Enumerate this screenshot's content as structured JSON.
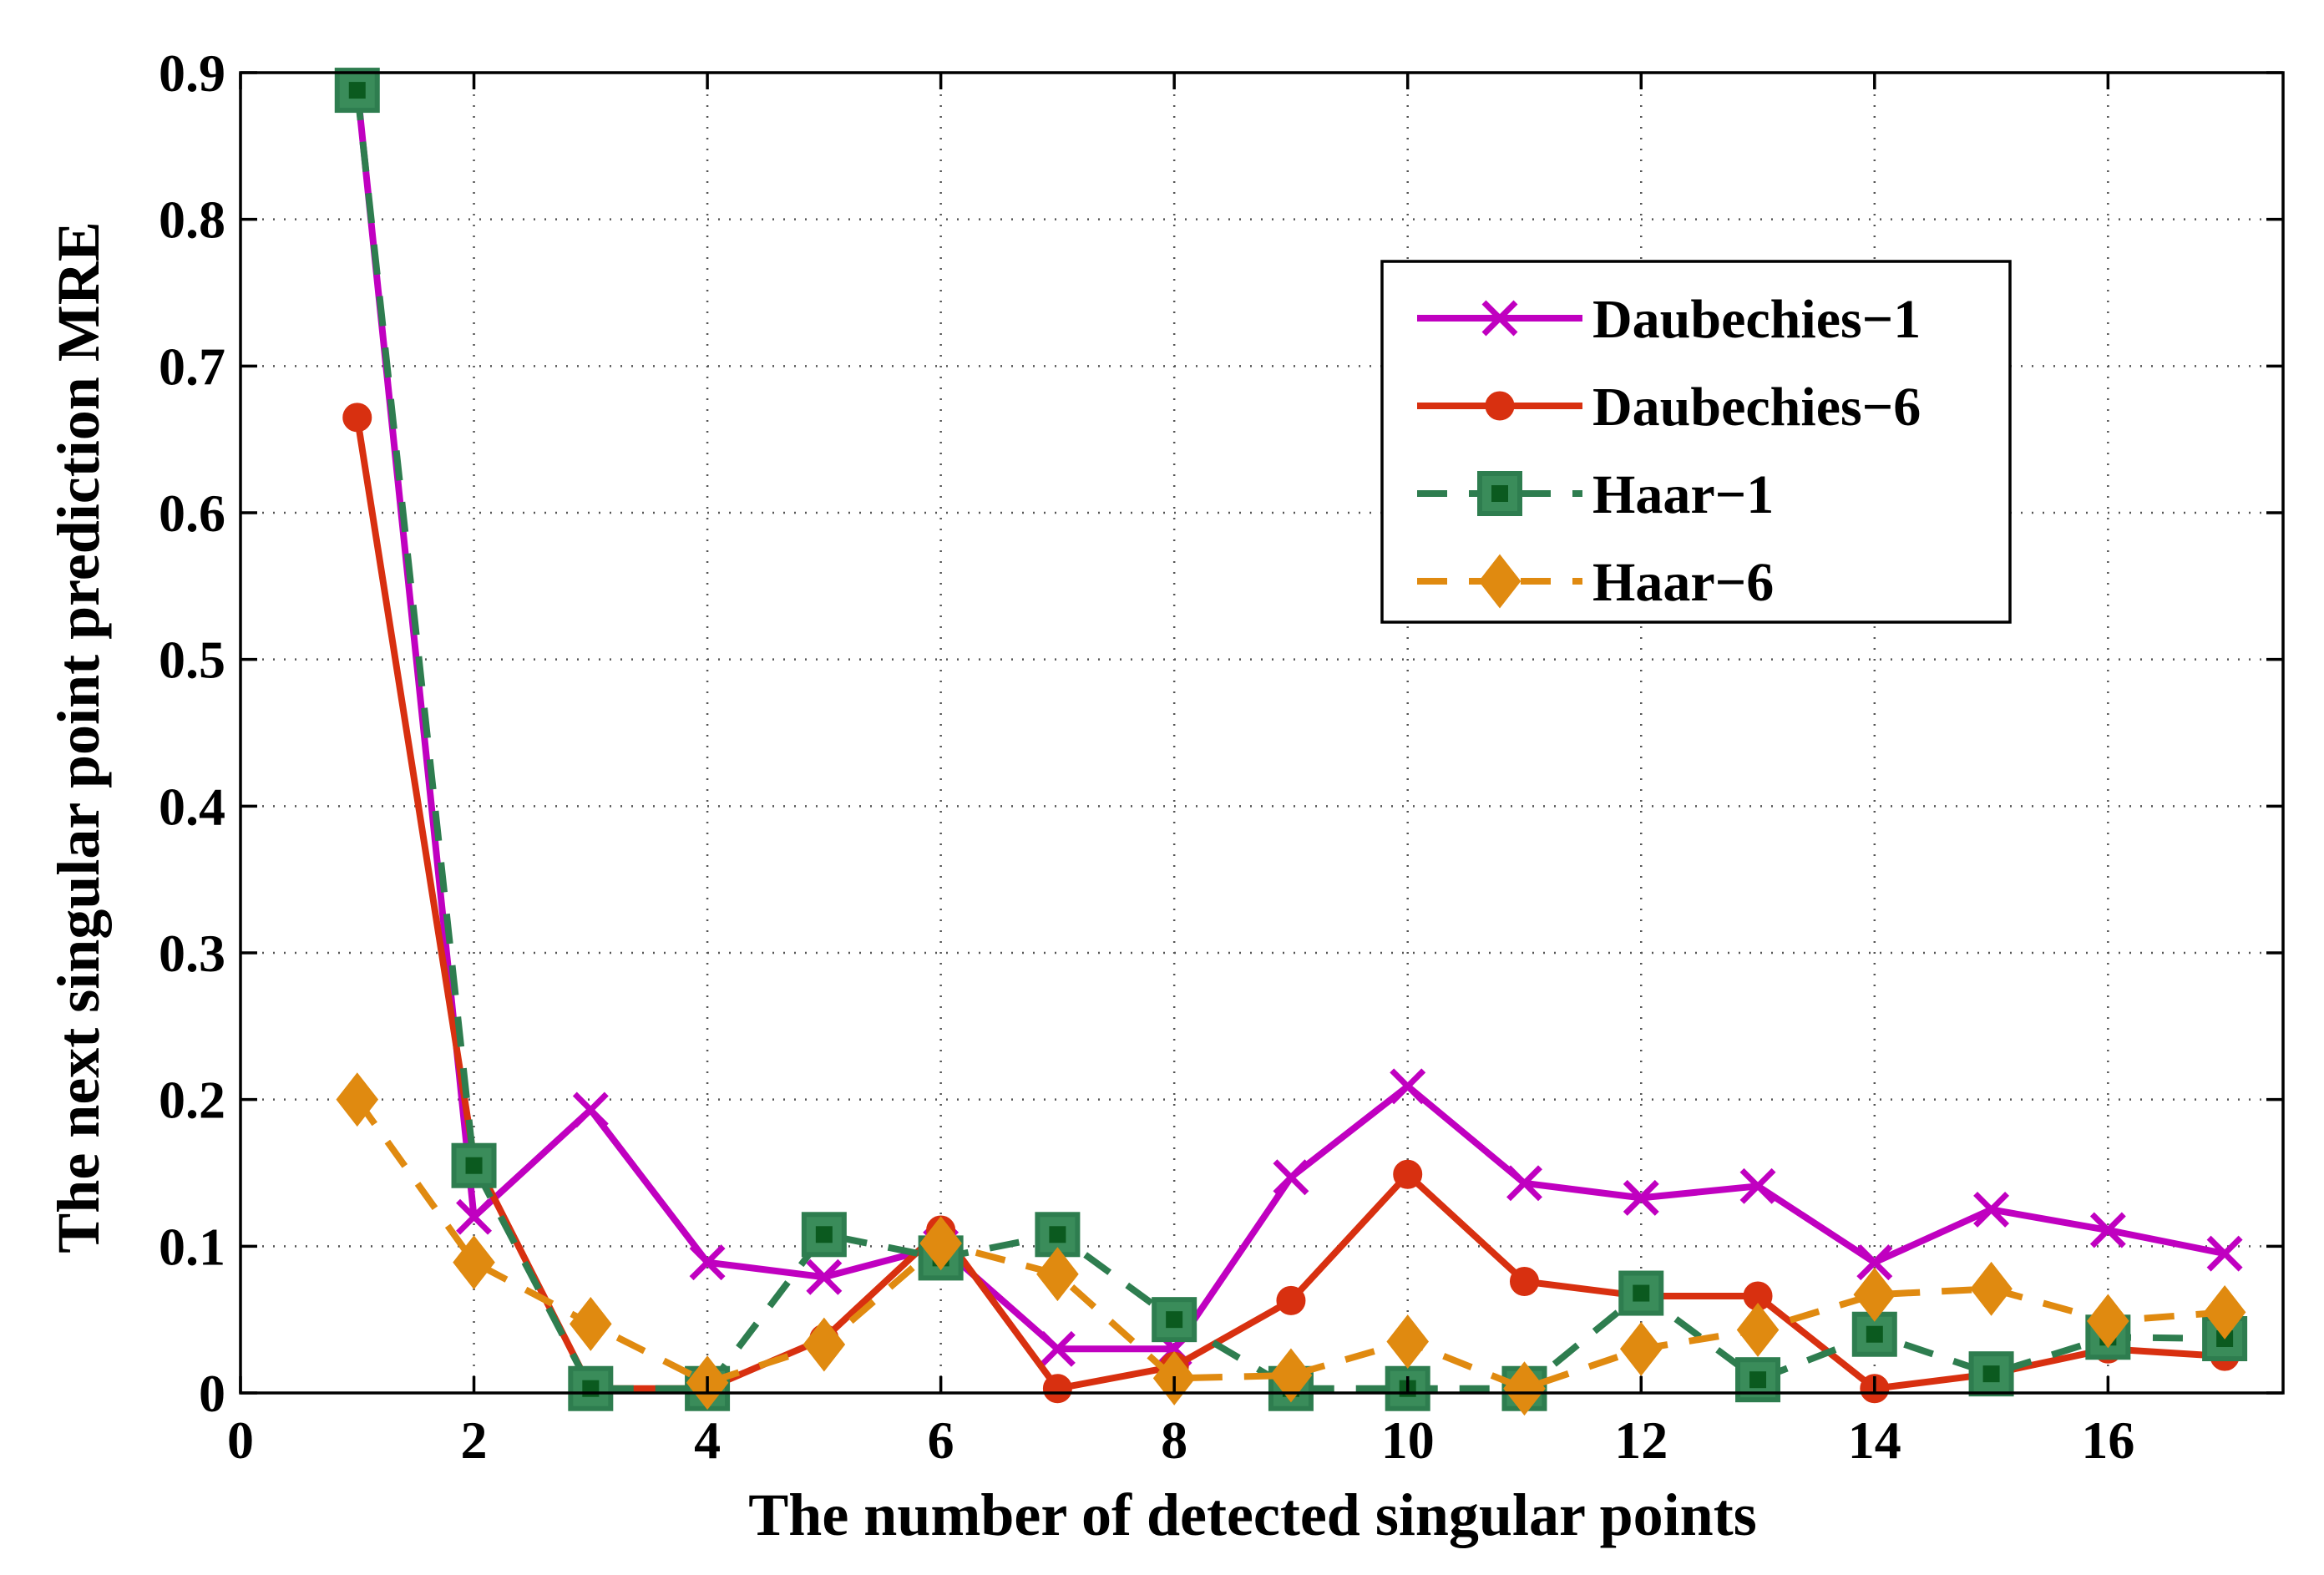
{
  "chart_data": {
    "type": "line",
    "title": "",
    "xlabel": "The number of detected singular points",
    "ylabel": "The next singular point prediction MRE",
    "xlim": [
      0,
      17.5
    ],
    "ylim": [
      0,
      0.9
    ],
    "xticks": [
      0,
      2,
      4,
      6,
      8,
      10,
      12,
      14,
      16
    ],
    "xtick_labels": [
      "0",
      "2",
      "4",
      "6",
      "8",
      "10",
      "12",
      "14",
      "16"
    ],
    "yticks": [
      0,
      0.1,
      0.2,
      0.3,
      0.4,
      0.5,
      0.6,
      0.7,
      0.8,
      0.9
    ],
    "ytick_labels": [
      "0",
      "0.1",
      "0.2",
      "0.3",
      "0.4",
      "0.5",
      "0.6",
      "0.7",
      "0.8",
      "0.9"
    ],
    "grid": true,
    "legend_position": "top-right",
    "x": [
      1,
      2,
      3,
      4,
      5,
      6,
      7,
      8,
      9,
      10,
      11,
      12,
      13,
      14,
      15,
      16,
      17
    ],
    "series": [
      {
        "name": "Daubechies−1",
        "color": "#C000C0",
        "marker": "x",
        "dash": "solid",
        "values": [
          0.89,
          0.12,
          0.193,
          0.089,
          0.079,
          0.1,
          0.03,
          0.03,
          0.147,
          0.209,
          0.143,
          0.133,
          0.141,
          0.089,
          0.125,
          0.111,
          0.095
        ]
      },
      {
        "name": "Daubechies−6",
        "color": "#D83010",
        "marker": "circle",
        "dash": "solid",
        "values": [
          0.665,
          0.16,
          0.003,
          0.003,
          0.037,
          0.111,
          0.003,
          0.018,
          0.063,
          0.149,
          0.076,
          0.066,
          0.066,
          0.003,
          0.013,
          0.03,
          0.025
        ]
      },
      {
        "name": "Haar−1",
        "color": "#2E7D4F",
        "marker": "square",
        "dash": "dashed",
        "values": [
          0.888,
          0.155,
          0.003,
          0.003,
          0.108,
          0.092,
          0.108,
          0.05,
          0.003,
          0.003,
          0.003,
          0.068,
          0.009,
          0.04,
          0.013,
          0.038,
          0.037
        ]
      },
      {
        "name": "Haar−6",
        "color": "#E08A10",
        "marker": "diamond",
        "dash": "dashed",
        "values": [
          0.2,
          0.089,
          0.047,
          0.007,
          0.033,
          0.102,
          0.081,
          0.01,
          0.012,
          0.035,
          0.003,
          0.03,
          0.043,
          0.067,
          0.071,
          0.049,
          0.055
        ]
      }
    ]
  }
}
